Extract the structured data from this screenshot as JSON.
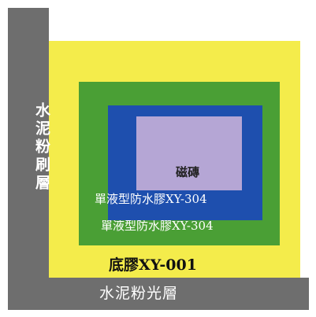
{
  "colors": {
    "cement": "#6e6e6e",
    "primer": "#f4ec4b",
    "waterproof_lower": "#4a9f35",
    "waterproof_upper": "#1e4fae",
    "tile": "#b5a6d5"
  },
  "layers": {
    "wall_label": "水泥粉刷層",
    "tile_label": "磁磚",
    "waterproof_upper_label": "單液型防水膠XY-304",
    "waterproof_lower_label": "單液型防水膠XY-304",
    "primer_label": "底膠XY-001",
    "floor_label": "水泥粉光層"
  }
}
